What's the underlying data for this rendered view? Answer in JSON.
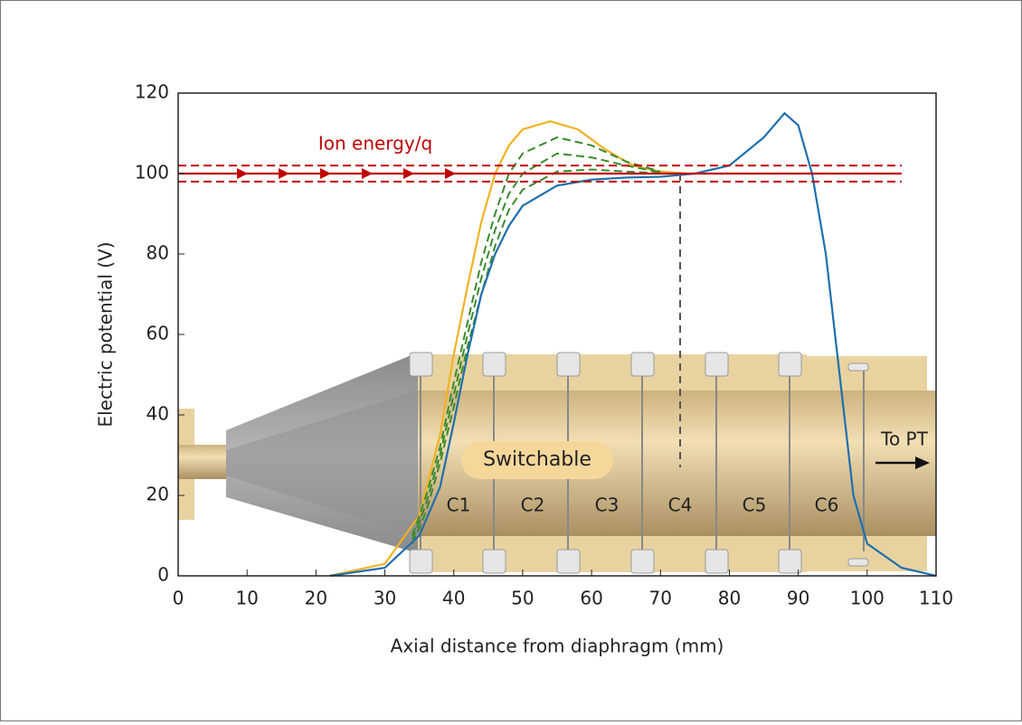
{
  "chart_data": {
    "type": "line",
    "xlabel": "Axial distance from diaphragm (mm)",
    "ylabel": "Electric potential (V)",
    "xlim": [
      0,
      110
    ],
    "ylim": [
      0,
      120
    ],
    "xticks": [
      0,
      10,
      20,
      30,
      40,
      50,
      60,
      70,
      80,
      90,
      100,
      110
    ],
    "yticks": [
      0,
      20,
      40,
      60,
      80,
      100,
      120
    ],
    "series": [
      {
        "color": "#f0b323",
        "dash": false,
        "x": [
          22,
          30,
          35,
          38,
          40,
          42,
          44,
          46,
          48,
          50,
          54,
          58,
          62,
          66,
          70,
          74
        ],
        "values": [
          0,
          3,
          15,
          35,
          55,
          72,
          88,
          100,
          107,
          111,
          113,
          111,
          106,
          102,
          100.5,
          100
        ]
      },
      {
        "color": "#3a8a2e",
        "dash": true,
        "x": [
          34,
          36,
          38,
          40,
          42,
          44,
          46,
          48,
          50,
          55,
          60,
          65,
          70
        ],
        "values": [
          10,
          20,
          32,
          48,
          63,
          78,
          90,
          100,
          105,
          109,
          107,
          103,
          100.5
        ]
      },
      {
        "color": "#3a8a2e",
        "dash": true,
        "x": [
          34,
          36,
          38,
          40,
          42,
          44,
          46,
          48,
          50,
          55,
          60,
          65,
          70
        ],
        "values": [
          9,
          18,
          30,
          45,
          60,
          74,
          86,
          95,
          100,
          105,
          104,
          102,
          100.3
        ]
      },
      {
        "color": "#3a8a2e",
        "dash": true,
        "x": [
          34,
          36,
          38,
          40,
          42,
          44,
          46,
          48,
          50,
          55,
          60,
          65,
          70
        ],
        "values": [
          8,
          16,
          28,
          42,
          57,
          70,
          82,
          91,
          96,
          100.5,
          101,
          100.5,
          100.1
        ]
      },
      {
        "color": "#1f6fae",
        "dash": false,
        "x": [
          22,
          30,
          35,
          38,
          40,
          42,
          44,
          46,
          48,
          50,
          55,
          60,
          65,
          70,
          75,
          80,
          85,
          88,
          90,
          92,
          94,
          96,
          98,
          100,
          105,
          110
        ],
        "values": [
          0,
          2,
          10,
          22,
          38,
          55,
          70,
          80,
          87,
          92,
          97,
          98.5,
          99,
          99.2,
          100,
          102,
          109,
          115,
          112,
          100,
          80,
          50,
          20,
          8,
          2,
          0
        ]
      },
      {
        "color": "#c00000",
        "dash": false,
        "x": [
          0,
          105
        ],
        "values": [
          100,
          100
        ]
      },
      {
        "color": "#c00000",
        "dash": true,
        "x": [
          0,
          105
        ],
        "values": [
          102,
          102
        ]
      },
      {
        "color": "#c00000",
        "dash": true,
        "x": [
          0,
          105
        ],
        "values": [
          98,
          98
        ]
      }
    ],
    "annotations": {
      "ion": "Ion energy/q",
      "switchable": "Switchable",
      "topt": "To PT",
      "electrodes": [
        "C1",
        "C2",
        "C3",
        "C4",
        "C5",
        "C6"
      ]
    }
  }
}
